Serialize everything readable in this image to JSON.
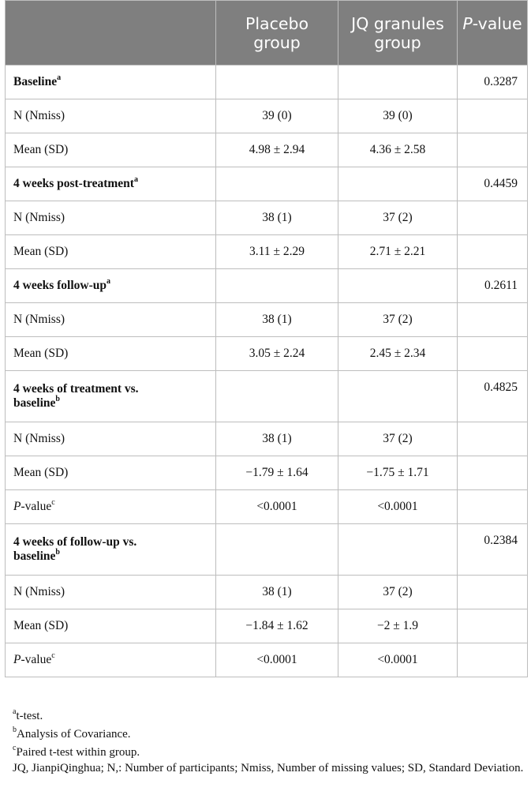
{
  "headers": {
    "col1": "",
    "col2": "Placebo group",
    "col3": "JQ granules group",
    "col4_italic": "P",
    "col4_rest": "-value"
  },
  "rows": [
    {
      "type": "section",
      "label": "Baseline",
      "sup": "a",
      "placebo": "",
      "jq": "",
      "p": "0.3287"
    },
    {
      "type": "row",
      "label": "N (Nmiss)",
      "placebo": "39 (0)",
      "jq": "39 (0)",
      "p": ""
    },
    {
      "type": "row",
      "label": "Mean (SD)",
      "placebo": "4.98 ± 2.94",
      "jq": "4.36 ± 2.58",
      "p": ""
    },
    {
      "type": "section",
      "label": "4 weeks post-treatment",
      "sup": "a",
      "placebo": "",
      "jq": "",
      "p": "0.4459"
    },
    {
      "type": "row",
      "label": "N (Nmiss)",
      "placebo": "38 (1)",
      "jq": "37 (2)",
      "p": ""
    },
    {
      "type": "row",
      "label": "Mean (SD)",
      "placebo": "3.11 ± 2.29",
      "jq": "2.71 ± 2.21",
      "p": ""
    },
    {
      "type": "section",
      "label": "4 weeks follow-up",
      "sup": "a",
      "placebo": "",
      "jq": "",
      "p": "0.2611"
    },
    {
      "type": "row",
      "label": "N (Nmiss)",
      "placebo": "38 (1)",
      "jq": "37 (2)",
      "p": ""
    },
    {
      "type": "row",
      "label": "Mean (SD)",
      "placebo": "3.05 ± 2.24",
      "jq": "2.45 ± 2.34",
      "p": ""
    },
    {
      "type": "section2",
      "label1": "4 weeks of treatment vs.",
      "label2": "baseline",
      "sup": "b",
      "placebo": "",
      "jq": "",
      "p": "0.4825"
    },
    {
      "type": "row",
      "label": "N (Nmiss)",
      "placebo": "38 (1)",
      "jq": "37 (2)",
      "p": ""
    },
    {
      "type": "row",
      "label": "Mean (SD)",
      "placebo": "−1.79 ± 1.64",
      "jq": "−1.75 ± 1.71",
      "p": ""
    },
    {
      "type": "prow",
      "label_italic": "P",
      "label_rest": "-value",
      "sup": "c",
      "placebo": "<0.0001",
      "jq": "<0.0001",
      "p": ""
    },
    {
      "type": "section2",
      "label1": "4 weeks of follow-up vs.",
      "label2": "baseline",
      "sup": "b",
      "placebo": "",
      "jq": "",
      "p": "0.2384"
    },
    {
      "type": "row",
      "label": "N (Nmiss)",
      "placebo": "38 (1)",
      "jq": "37 (2)",
      "p": ""
    },
    {
      "type": "row",
      "label": "Mean (SD)",
      "placebo": "−1.84 ± 1.62",
      "jq": "−2 ± 1.9",
      "p": ""
    },
    {
      "type": "prow",
      "label_italic": "P",
      "label_rest": "-value",
      "sup": "c",
      "placebo": "<0.0001",
      "jq": "<0.0001",
      "p": ""
    }
  ],
  "footnotes": {
    "a": {
      "sup": "a",
      "text": "t-test."
    },
    "b": {
      "sup": "b",
      "text": "Analysis of Covariance."
    },
    "c": {
      "sup": "c",
      "text": "Paired t-test within group."
    },
    "abbrev": "JQ, JianpiQinghua; N,: Number of participants; Nmiss, Number of missing values; SD, Standard Deviation."
  }
}
